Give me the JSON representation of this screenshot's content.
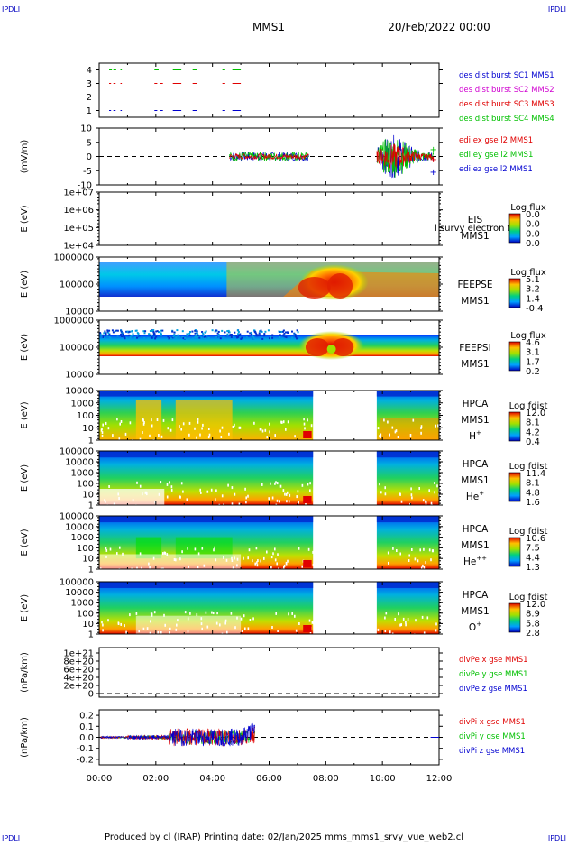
{
  "header": {
    "corner_tl": "IPDLI",
    "corner_tr": "IPDLI",
    "corner_bl": "IPDLI",
    "corner_br": "IPDLI",
    "mission": "MMS1",
    "date": "20/Feb/2022 00:00"
  },
  "footer": {
    "text": "Produced by cl (IRAP)   Printing date: 02/Jan/2025   mms_mms1_srvy_vue_web2.cl"
  },
  "colors": {
    "red": "#e00000",
    "green": "#00c000",
    "blue": "#0000d0",
    "magenta": "#d000d0",
    "dashed": "#000000"
  },
  "chart_data": [
    {
      "type": "line",
      "id": "burst",
      "ylim": [
        0.5,
        4.5
      ],
      "yticks": [
        "1",
        "2",
        "3",
        "4"
      ],
      "legend": [
        {
          "text": "des dist burst SC1 MMS1",
          "color": "#0000d0"
        },
        {
          "text": "des dist burst SC2 MMS2",
          "color": "#d000d0"
        },
        {
          "text": "des dist burst SC3 MMS3",
          "color": "#e00000"
        },
        {
          "text": "des dist burst SC4 MMS4",
          "color": "#00c000"
        }
      ],
      "series": [
        {
          "level": 4,
          "color": "#00c000",
          "intervals": [
            [
              0.35,
              0.45
            ],
            [
              0.5,
              0.6
            ],
            [
              0.75,
              0.8
            ],
            [
              1.95,
              2.1
            ],
            [
              2.6,
              2.9
            ],
            [
              3.3,
              3.45
            ],
            [
              4.35,
              4.45
            ],
            [
              4.7,
              5.0
            ]
          ]
        },
        {
          "level": 3,
          "color": "#e00000",
          "intervals": [
            [
              0.35,
              0.42
            ],
            [
              0.5,
              0.58
            ],
            [
              0.75,
              0.8
            ],
            [
              1.95,
              2.05
            ],
            [
              2.15,
              2.25
            ],
            [
              2.6,
              2.9
            ],
            [
              3.3,
              3.45
            ],
            [
              4.35,
              4.45
            ],
            [
              4.7,
              5.0
            ]
          ]
        },
        {
          "level": 2,
          "color": "#d000d0",
          "intervals": [
            [
              0.35,
              0.42
            ],
            [
              0.5,
              0.58
            ],
            [
              0.75,
              0.8
            ],
            [
              1.95,
              2.05
            ],
            [
              2.15,
              2.25
            ],
            [
              2.6,
              2.9
            ],
            [
              3.3,
              3.45
            ],
            [
              4.35,
              4.45
            ],
            [
              4.7,
              5.0
            ]
          ]
        },
        {
          "level": 1,
          "color": "#0000d0",
          "intervals": [
            [
              0.35,
              0.42
            ],
            [
              0.5,
              0.58
            ],
            [
              0.75,
              0.8
            ],
            [
              1.95,
              2.05
            ],
            [
              2.15,
              2.25
            ],
            [
              2.6,
              2.9
            ],
            [
              3.3,
              3.45
            ],
            [
              4.35,
              4.45
            ],
            [
              4.7,
              5.0
            ]
          ]
        }
      ]
    },
    {
      "type": "line",
      "id": "edi",
      "ylabel": "(mV/m)",
      "ylim": [
        -10,
        10
      ],
      "yticks": [
        "10",
        "5",
        "0",
        "-5",
        "-10"
      ],
      "legend": [
        {
          "text": "edi ex gse l2 MMS1",
          "color": "#e00000"
        },
        {
          "text": "edi ey gse l2 MMS1",
          "color": "#00c000"
        },
        {
          "text": "edi ez gse l2 MMS1",
          "color": "#0000d0"
        }
      ],
      "activity": [
        [
          4.6,
          7.4
        ],
        [
          9.8,
          11.8
        ]
      ]
    },
    {
      "type": "heatmap",
      "id": "eis",
      "ylabel": "E (eV)",
      "yticks": [
        "1e+07",
        "1e+06",
        "1e+05",
        "1e+04"
      ],
      "labels": [
        "EIS",
        "MMS1"
      ],
      "overlay": "l survy electron to",
      "colorbar": {
        "title": "Log flux",
        "ticks": [
          "0.0",
          "0.0",
          "0.0",
          "0.0"
        ]
      }
    },
    {
      "type": "heatmap",
      "id": "feepse",
      "ylabel": "E (eV)",
      "yticks": [
        "1000000",
        "100000",
        "10000"
      ],
      "labels": [
        "FEEPSE",
        "MMS1"
      ],
      "colorbar": {
        "title": "Log flux",
        "ticks": [
          "5.1",
          "3.2",
          "1.4",
          "-0.4"
        ]
      }
    },
    {
      "type": "heatmap",
      "id": "feepsi",
      "ylabel": "E (eV)",
      "yticks": [
        "1000000",
        "100000",
        "10000"
      ],
      "labels": [
        "FEEPSI",
        "MMS1"
      ],
      "colorbar": {
        "title": "Log flux",
        "ticks": [
          "4.6",
          "3.1",
          "1.7",
          "0.2"
        ]
      }
    },
    {
      "type": "heatmap",
      "id": "hpca_h",
      "ylabel": "E (eV)",
      "yticks": [
        "10000",
        "1000",
        "100",
        "10",
        "1"
      ],
      "labels": [
        "HPCA",
        "MMS1",
        "H+"
      ],
      "colorbar": {
        "title": "Log fdist",
        "ticks": [
          "12.0",
          "8.1",
          "4.2",
          "0.4"
        ]
      }
    },
    {
      "type": "heatmap",
      "id": "hpca_he",
      "ylabel": "E (eV)",
      "yticks": [
        "100000",
        "10000",
        "1000",
        "100",
        "10",
        "1"
      ],
      "labels": [
        "HPCA",
        "MMS1",
        "He+"
      ],
      "colorbar": {
        "title": "Log fdist",
        "ticks": [
          "11.4",
          "8.1",
          "4.8",
          "1.6"
        ]
      }
    },
    {
      "type": "heatmap",
      "id": "hpca_hepp",
      "ylabel": "E (eV)",
      "yticks": [
        "100000",
        "10000",
        "1000",
        "100",
        "10",
        "1"
      ],
      "labels": [
        "HPCA",
        "MMS1",
        "He++"
      ],
      "colorbar": {
        "title": "Log fdist",
        "ticks": [
          "10.6",
          "7.5",
          "4.4",
          "1.3"
        ]
      }
    },
    {
      "type": "heatmap",
      "id": "hpca_o",
      "ylabel": "E (eV)",
      "yticks": [
        "100000",
        "10000",
        "1000",
        "100",
        "10",
        "1"
      ],
      "labels": [
        "HPCA",
        "MMS1",
        "O+"
      ],
      "colorbar": {
        "title": "Log fdist",
        "ticks": [
          "12.0",
          "8.9",
          "5.8",
          "2.8"
        ]
      }
    },
    {
      "type": "line",
      "id": "divpe",
      "ylabel": "(nPa/km)",
      "ylim": [
        0,
        1e+21
      ],
      "yticks": [
        "1e+21",
        "8e+20",
        "6e+20",
        "4e+20",
        "2e+20",
        "0"
      ],
      "legend": [
        {
          "text": "divPe x gse MMS1",
          "color": "#e00000"
        },
        {
          "text": "divPe y gse MMS1",
          "color": "#00c000"
        },
        {
          "text": "divPe z gse MMS1",
          "color": "#0000d0"
        }
      ]
    },
    {
      "type": "line",
      "id": "divpi",
      "ylabel": "(nPa/km)",
      "ylim": [
        -0.25,
        0.25
      ],
      "yticks": [
        "0.2",
        "0.1",
        "0.0",
        "-0.1",
        "-0.2"
      ],
      "legend": [
        {
          "text": "divPi x gse MMS1",
          "color": "#e00000"
        },
        {
          "text": "divPi y gse MMS1",
          "color": "#00c000"
        },
        {
          "text": "divPi z gse MMS1",
          "color": "#0000d0"
        }
      ]
    }
  ],
  "xaxis": {
    "range_hours": [
      0,
      12
    ],
    "ticks": [
      "00:00",
      "02:00",
      "04:00",
      "06:00",
      "08:00",
      "10:00",
      "12:00"
    ]
  }
}
